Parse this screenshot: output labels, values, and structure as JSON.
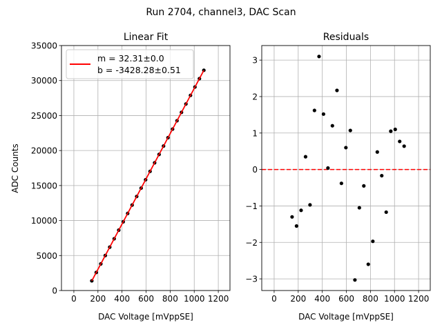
{
  "figure_title": "Run 2704, channel3, DAC Scan",
  "chart_data": [
    {
      "type": "scatter",
      "title": "Linear Fit",
      "xlabel": "DAC Voltage [mVppSE]",
      "ylabel": "ADC Counts",
      "xlim": [
        -103,
        1297
      ],
      "ylim": [
        0,
        35000
      ],
      "xticks": [
        0,
        200,
        400,
        600,
        800,
        1000,
        1200
      ],
      "yticks": [
        0,
        5000,
        10000,
        15000,
        20000,
        25000,
        30000,
        35000
      ],
      "grid": true,
      "legend": {
        "placement": "top-left",
        "entries": [
          "m = 32.31±0.0",
          "b = -3428.28±0.51"
        ]
      },
      "fit": {
        "slope": 32.31,
        "intercept": -3428.28,
        "color": "#ff0000"
      },
      "x": [
        149,
        186,
        224,
        261,
        298,
        335,
        373,
        410,
        447,
        484,
        522,
        559,
        596,
        633,
        671,
        708,
        745,
        782,
        820,
        857,
        894,
        931,
        969,
        1006,
        1043,
        1080
      ],
      "y": [
        1384.6,
        2579.8,
        3808.0,
        5005.0,
        6199.1,
        7397.2,
        8626.5,
        9820.3,
        11014.3,
        12211.0,
        13439.7,
        14632.6,
        15829.1,
        17025.0,
        18248.7,
        19446.2,
        20642.2,
        21835.5,
        23064.0,
        24261.9,
        25456.7,
        26651.2,
        27881.2,
        29076.7,
        30271.8,
        31467.2
      ]
    },
    {
      "type": "scatter",
      "title": "Residuals",
      "xlabel": "DAC Voltage [mVppSE]",
      "ylabel": "",
      "xlim": [
        -103,
        1297
      ],
      "ylim": [
        -3.32,
        3.4
      ],
      "xticks": [
        0,
        200,
        400,
        600,
        800,
        1000,
        1200
      ],
      "yticks": [
        -3,
        -2,
        -1,
        0,
        1,
        2,
        3
      ],
      "grid": true,
      "zero_line_color": "#ff0000",
      "x": [
        149,
        186,
        224,
        261,
        298,
        335,
        373,
        410,
        447,
        484,
        522,
        559,
        596,
        633,
        671,
        708,
        745,
        782,
        820,
        857,
        894,
        931,
        969,
        1006,
        1043,
        1080
      ],
      "y": [
        -1.3,
        -1.55,
        -1.12,
        0.35,
        -0.97,
        1.62,
        3.1,
        1.52,
        0.04,
        1.2,
        2.17,
        -0.38,
        0.6,
        1.07,
        -3.03,
        -1.05,
        -0.45,
        -2.6,
        -1.97,
        0.48,
        -0.17,
        -1.17,
        1.05,
        1.1,
        0.77,
        0.64
      ]
    }
  ]
}
